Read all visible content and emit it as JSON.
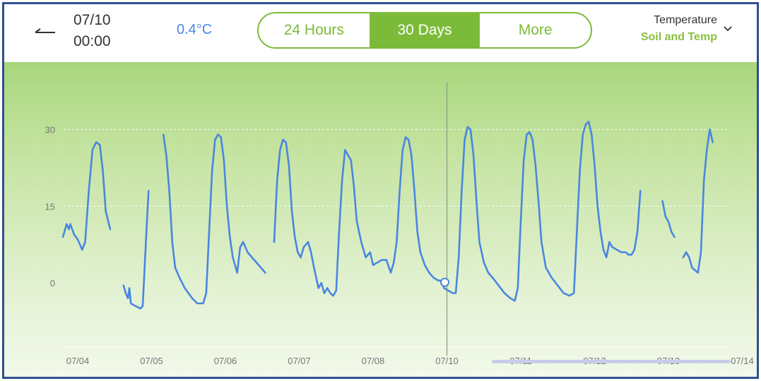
{
  "header": {
    "back_icon": "back-arrow-icon",
    "date": "07/10",
    "time": "00:00",
    "reading": "0.4°C",
    "tabs": [
      {
        "label": "24 Hours",
        "active": false
      },
      {
        "label": "30 Days",
        "active": true
      },
      {
        "label": "More",
        "active": false
      }
    ],
    "metric": "Temperature",
    "sensor": "Soil and Temp",
    "dropdown_icon": "chevron-down-icon"
  },
  "colors": {
    "accent": "#7cbb3a",
    "line": "#4a86e0",
    "cursor_line": "#8c9a80"
  },
  "chart_data": {
    "type": "line",
    "title": "",
    "xlabel": "",
    "ylabel": "",
    "ylim": [
      -12.5,
      40
    ],
    "yticks": [
      0,
      15,
      30
    ],
    "grid": "dashed horizontal at 15 and 30",
    "x_ticks": [
      {
        "label": "07/04",
        "x": 0
      },
      {
        "label": "07/05",
        "x": 1
      },
      {
        "label": "07/06",
        "x": 2
      },
      {
        "label": "07/07",
        "x": 3
      },
      {
        "label": "07/08",
        "x": 4
      },
      {
        "label": "07/10",
        "x": 5
      },
      {
        "label": "07/11",
        "x": 6
      },
      {
        "label": "07/12",
        "x": 7
      },
      {
        "label": "07/13",
        "x": 8
      },
      {
        "label": "07/14",
        "x": 9
      }
    ],
    "cursor": {
      "x": 5,
      "y": 0.4
    },
    "series": [
      {
        "segments": [
          [
            [
              -0.2,
              9
            ],
            [
              -0.15,
              11.5
            ],
            [
              -0.12,
              10.5
            ],
            [
              -0.1,
              11.5
            ],
            [
              -0.05,
              9.5
            ],
            [
              0,
              8.5
            ],
            [
              0.06,
              6.5
            ],
            [
              0.1,
              8
            ],
            [
              0.15,
              18
            ],
            [
              0.2,
              26
            ],
            [
              0.25,
              27.5
            ],
            [
              0.3,
              27
            ],
            [
              0.34,
              22
            ],
            [
              0.38,
              14
            ],
            [
              0.44,
              10.5
            ]
          ],
          [
            [
              0.62,
              -0.5
            ],
            [
              0.65,
              -2
            ],
            [
              0.68,
              -3
            ],
            [
              0.7,
              -1
            ],
            [
              0.72,
              -4
            ],
            [
              0.78,
              -4.5
            ],
            [
              0.85,
              -5
            ],
            [
              0.88,
              -4.5
            ],
            [
              0.93,
              10
            ],
            [
              0.96,
              18
            ]
          ],
          [
            [
              1.16,
              29
            ],
            [
              1.2,
              25
            ],
            [
              1.24,
              18
            ],
            [
              1.28,
              8
            ],
            [
              1.32,
              3
            ],
            [
              1.38,
              1
            ],
            [
              1.45,
              -1
            ],
            [
              1.55,
              -3
            ],
            [
              1.62,
              -4
            ],
            [
              1.7,
              -4
            ],
            [
              1.74,
              -2
            ],
            [
              1.78,
              10
            ],
            [
              1.82,
              22
            ],
            [
              1.86,
              28
            ],
            [
              1.9,
              29
            ],
            [
              1.94,
              28.5
            ],
            [
              1.98,
              24
            ],
            [
              2.02,
              15
            ],
            [
              2.06,
              9
            ],
            [
              2.1,
              5
            ],
            [
              2.16,
              2
            ],
            [
              2.2,
              7
            ],
            [
              2.24,
              8
            ],
            [
              2.3,
              6
            ],
            [
              2.36,
              5
            ],
            [
              2.42,
              4
            ],
            [
              2.48,
              3
            ],
            [
              2.54,
              2
            ]
          ],
          [
            [
              2.66,
              8
            ],
            [
              2.7,
              20
            ],
            [
              2.74,
              26
            ],
            [
              2.78,
              28
            ],
            [
              2.82,
              27.5
            ],
            [
              2.86,
              23
            ],
            [
              2.9,
              14
            ],
            [
              2.94,
              9
            ],
            [
              2.98,
              6
            ],
            [
              3.02,
              5
            ],
            [
              3.06,
              7
            ],
            [
              3.12,
              8
            ],
            [
              3.16,
              6
            ],
            [
              3.2,
              3
            ],
            [
              3.26,
              -1
            ],
            [
              3.3,
              0
            ],
            [
              3.34,
              -2
            ],
            [
              3.38,
              -1
            ],
            [
              3.42,
              -2
            ],
            [
              3.46,
              -2.5
            ],
            [
              3.5,
              -1.5
            ],
            [
              3.54,
              10
            ],
            [
              3.58,
              20
            ],
            [
              3.62,
              26
            ],
            [
              3.66,
              25
            ],
            [
              3.7,
              24
            ],
            [
              3.74,
              19
            ],
            [
              3.78,
              12
            ],
            [
              3.84,
              8
            ],
            [
              3.9,
              5
            ],
            [
              3.96,
              6
            ],
            [
              4,
              3.5
            ],
            [
              4.06,
              4
            ],
            [
              4.12,
              4.5
            ],
            [
              4.18,
              4.5
            ],
            [
              4.24,
              2
            ],
            [
              4.28,
              4
            ],
            [
              4.32,
              8
            ],
            [
              4.36,
              18
            ],
            [
              4.4,
              26
            ],
            [
              4.44,
              28.5
            ],
            [
              4.48,
              28
            ],
            [
              4.52,
              25
            ],
            [
              4.56,
              18
            ],
            [
              4.6,
              10
            ],
            [
              4.64,
              6
            ],
            [
              4.7,
              3.5
            ],
            [
              4.76,
              2
            ],
            [
              4.82,
              1
            ],
            [
              4.88,
              0.5
            ],
            [
              4.93,
              0.4
            ],
            [
              4.96,
              -1
            ],
            [
              5.02,
              -1.5
            ],
            [
              5.08,
              -2
            ],
            [
              5.12,
              -2
            ],
            [
              5.16,
              5
            ],
            [
              5.2,
              18
            ],
            [
              5.24,
              28
            ],
            [
              5.28,
              30.5
            ],
            [
              5.32,
              30
            ],
            [
              5.36,
              25
            ],
            [
              5.4,
              16
            ],
            [
              5.44,
              8
            ],
            [
              5.5,
              4
            ],
            [
              5.56,
              2
            ],
            [
              5.62,
              1
            ],
            [
              5.7,
              -0.5
            ],
            [
              5.78,
              -2
            ],
            [
              5.86,
              -3
            ],
            [
              5.92,
              -3.5
            ],
            [
              5.96,
              -1
            ],
            [
              6,
              12
            ],
            [
              6.04,
              24
            ],
            [
              6.08,
              29
            ],
            [
              6.12,
              29.5
            ],
            [
              6.16,
              28
            ],
            [
              6.2,
              23
            ],
            [
              6.24,
              16
            ],
            [
              6.28,
              8
            ],
            [
              6.34,
              3
            ],
            [
              6.42,
              1
            ],
            [
              6.5,
              -0.5
            ],
            [
              6.58,
              -2
            ],
            [
              6.66,
              -2.5
            ],
            [
              6.72,
              -2
            ],
            [
              6.76,
              10
            ],
            [
              6.8,
              22
            ],
            [
              6.84,
              29
            ],
            [
              6.88,
              31
            ],
            [
              6.92,
              31.5
            ],
            [
              6.96,
              29
            ],
            [
              7,
              23
            ],
            [
              7.04,
              15
            ],
            [
              7.08,
              10
            ],
            [
              7.12,
              6.5
            ],
            [
              7.16,
              5
            ],
            [
              7.2,
              8
            ],
            [
              7.24,
              7
            ],
            [
              7.3,
              6.5
            ],
            [
              7.36,
              6
            ],
            [
              7.42,
              6
            ],
            [
              7.46,
              5.5
            ],
            [
              7.5,
              5.5
            ],
            [
              7.54,
              6.5
            ],
            [
              7.58,
              10
            ],
            [
              7.62,
              18
            ]
          ],
          [
            [
              7.92,
              16
            ],
            [
              7.96,
              13
            ],
            [
              8,
              12
            ],
            [
              8.04,
              10
            ],
            [
              8.08,
              9
            ]
          ],
          [
            [
              8.2,
              5
            ],
            [
              8.24,
              6
            ],
            [
              8.28,
              5
            ],
            [
              8.32,
              3
            ],
            [
              8.36,
              2.5
            ],
            [
              8.4,
              2
            ],
            [
              8.44,
              6
            ],
            [
              8.48,
              20
            ],
            [
              8.52,
              26
            ],
            [
              8.56,
              30
            ],
            [
              8.6,
              27.5
            ]
          ]
        ]
      }
    ]
  }
}
